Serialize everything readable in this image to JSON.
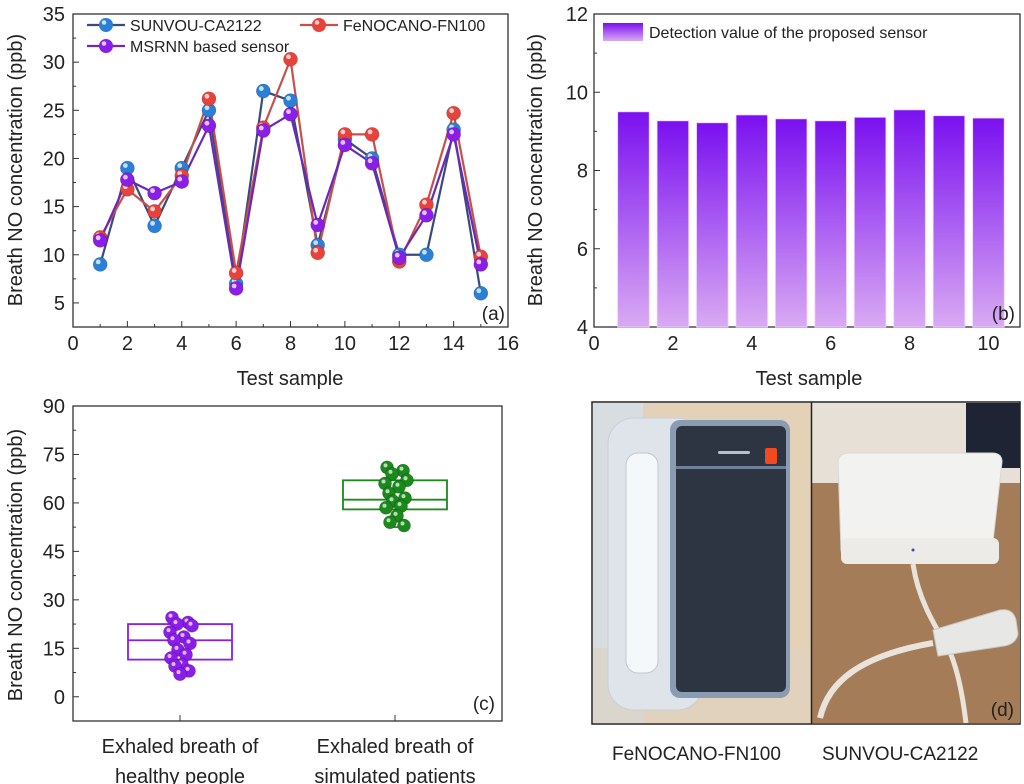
{
  "chart_data": [
    {
      "id": "a",
      "type": "line",
      "panel_label": "(a)",
      "title": "",
      "xlabel": "Test sample",
      "ylabel": "Breath NO concentration (ppb)",
      "xlim": [
        0,
        16
      ],
      "ylim": [
        2.5,
        35
      ],
      "xticks": [
        0,
        2,
        4,
        6,
        8,
        10,
        12,
        14,
        16
      ],
      "yticks": [
        5,
        10,
        15,
        20,
        25,
        30,
        35
      ],
      "legend_position": "top-left",
      "grid": false,
      "x": [
        1,
        2,
        3,
        4,
        5,
        6,
        7,
        8,
        9,
        10,
        11,
        12,
        13,
        14,
        15
      ],
      "series": [
        {
          "name": "SUNVOU-CA2122",
          "color": "#2a7fd6",
          "line_color": "#3a4a80",
          "values": [
            9,
            19,
            13,
            19,
            25,
            7,
            27,
            26,
            11,
            22,
            20,
            10,
            10,
            23,
            6
          ]
        },
        {
          "name": "FeNOCANO-FN100",
          "color": "#e8423c",
          "line_color": "#c8504a",
          "values": [
            11.8,
            16.8,
            14.5,
            18.2,
            26.2,
            8.1,
            23.2,
            30.3,
            10.2,
            22.5,
            22.5,
            9.3,
            15.2,
            24.7,
            9.8
          ]
        },
        {
          "name": "MSRNN based sensor",
          "color": "#8a1ee8",
          "line_color": "#6a2ab8",
          "values": [
            11.5,
            17.8,
            16.4,
            17.6,
            23.4,
            6.5,
            22.9,
            24.6,
            13.1,
            21.4,
            19.5,
            9.7,
            14.1,
            22.5,
            9
          ]
        }
      ]
    },
    {
      "id": "b",
      "type": "bar",
      "panel_label": "(b)",
      "title": "",
      "xlabel": "Test sample",
      "ylabel": "Breath NO concentration (ppb)",
      "xlim": [
        0,
        10.8
      ],
      "ylim": [
        4,
        12
      ],
      "xticks": [
        0,
        2,
        4,
        6,
        8,
        10
      ],
      "yticks": [
        4,
        6,
        8,
        10,
        12
      ],
      "legend_position": "top-left",
      "grid": false,
      "categories": [
        1,
        2,
        3,
        4,
        5,
        6,
        7,
        8,
        9,
        10
      ],
      "series": [
        {
          "name": "Detection value of the proposed sensor",
          "color_top": "#7a10f0",
          "color_bottom": "#d9aaf3",
          "values": [
            9.5,
            9.27,
            9.22,
            9.42,
            9.32,
            9.27,
            9.36,
            9.55,
            9.4,
            9.34
          ]
        }
      ]
    },
    {
      "id": "c",
      "type": "box",
      "panel_label": "(c)",
      "title": "",
      "xlabel": "",
      "ylabel": "Breath NO concentration (ppb)",
      "ylim": [
        -7.5,
        90
      ],
      "yticks": [
        0,
        15,
        30,
        45,
        60,
        75,
        90
      ],
      "grid": false,
      "categories": [
        "Exhaled breath of healthy people",
        "Exhaled breath of simulated patients"
      ],
      "category_lines": [
        [
          "Exhaled breath of",
          "healthy people"
        ],
        [
          "Exhaled breath of",
          "simulated patients"
        ]
      ],
      "groups": [
        {
          "name": "Exhaled breath of healthy people",
          "color": "#8a1ee8",
          "q1": 11.5,
          "median": 17.5,
          "q3": 22.5,
          "points": [
            24.5,
            23,
            22.5,
            22,
            20,
            18.5,
            17.5,
            16.5,
            14.5,
            13,
            12,
            10,
            9.5,
            8,
            7
          ]
        },
        {
          "name": "Exhaled breath of simulated patients",
          "color": "#1a8a1a",
          "q1": 58,
          "median": 61,
          "q3": 67,
          "whisker_low": 52.5,
          "points": [
            71,
            70,
            69,
            67,
            66,
            65,
            63,
            61.5,
            60.5,
            59,
            58.5,
            56,
            54,
            53
          ]
        }
      ]
    }
  ],
  "photo_panel": {
    "panel_label": "(d)",
    "captions": [
      "FeNOCANO-FN100",
      "SUNVOU-CA2122"
    ]
  }
}
